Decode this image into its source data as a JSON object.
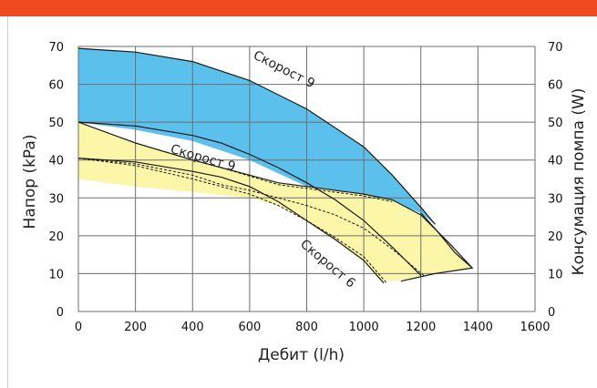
{
  "theme": {
    "accent": "#f04a23",
    "blue_region": "#5bc0ec",
    "yellow_region": "#fbf6a8"
  },
  "chart_data": {
    "type": "area",
    "xlabel": "Дебит (l/h)",
    "ylabel": "Напор (kPa)",
    "ylabel_right": "Консумация помпа (W)",
    "xlim": [
      0,
      1600
    ],
    "ylim": [
      0,
      70
    ],
    "ylim_right": [
      0,
      70
    ],
    "x_ticks": [
      0,
      200,
      400,
      600,
      800,
      1000,
      1200,
      1400,
      1600
    ],
    "y_ticks": [
      0,
      10,
      20,
      30,
      40,
      50,
      60,
      70
    ],
    "y_ticks_right": [
      0,
      10,
      20,
      30,
      40,
      50,
      60,
      70
    ],
    "grid": true,
    "areas": [
      {
        "color": "#5bc0ec",
        "upper": [
          [
            0,
            69.5
          ],
          [
            200,
            68.5
          ],
          [
            400,
            66
          ],
          [
            600,
            61
          ],
          [
            800,
            53.5
          ],
          [
            1000,
            43.5
          ],
          [
            1100,
            36
          ],
          [
            1200,
            27.5
          ],
          [
            1250,
            23
          ]
        ],
        "lower": [
          [
            0,
            50
          ],
          [
            200,
            48
          ],
          [
            400,
            45
          ],
          [
            600,
            40
          ],
          [
            800,
            33
          ],
          [
            1000,
            30.5
          ],
          [
            1100,
            29
          ],
          [
            1200,
            26
          ],
          [
            1250,
            23
          ]
        ]
      },
      {
        "color": "#fbf6a8",
        "upper": [
          [
            0,
            50
          ],
          [
            200,
            44.5
          ],
          [
            400,
            40
          ],
          [
            500,
            38
          ],
          [
            600,
            36
          ],
          [
            700,
            34
          ],
          [
            800,
            33
          ],
          [
            1000,
            31
          ],
          [
            1100,
            29.5
          ],
          [
            1200,
            25.5
          ],
          [
            1300,
            18
          ],
          [
            1380,
            11.5
          ]
        ],
        "lower": [
          [
            0,
            35
          ],
          [
            200,
            33
          ],
          [
            400,
            31.5
          ],
          [
            600,
            30
          ],
          [
            700,
            28
          ],
          [
            800,
            24
          ],
          [
            900,
            19
          ],
          [
            1000,
            13
          ],
          [
            1060,
            8.5
          ],
          [
            1100,
            8
          ]
        ]
      }
    ],
    "curves": [
      {
        "style": "solid",
        "points": [
          [
            0,
            50
          ],
          [
            200,
            49
          ],
          [
            400,
            46.5
          ],
          [
            500,
            44.5
          ],
          [
            600,
            41.5
          ],
          [
            700,
            38
          ],
          [
            800,
            34
          ],
          [
            900,
            29.5
          ],
          [
            1000,
            24
          ],
          [
            1100,
            17
          ],
          [
            1200,
            9.5
          ]
        ]
      },
      {
        "style": "solid",
        "points": [
          [
            0,
            40.5
          ],
          [
            200,
            39.5
          ],
          [
            400,
            37
          ],
          [
            500,
            35.5
          ],
          [
            600,
            33
          ],
          [
            700,
            29
          ],
          [
            800,
            24
          ],
          [
            900,
            19
          ],
          [
            1000,
            13.5
          ],
          [
            1070,
            7.5
          ]
        ]
      },
      {
        "style": "solid",
        "points": [
          [
            1200,
            26
          ],
          [
            1260,
            21
          ],
          [
            1320,
            15.5
          ],
          [
            1380,
            11.5
          ],
          [
            1250,
            10
          ],
          [
            1130,
            8
          ]
        ]
      },
      {
        "style": "dashed",
        "points": [
          [
            0,
            40.5
          ],
          [
            200,
            38.5
          ],
          [
            400,
            35
          ],
          [
            500,
            33
          ],
          [
            600,
            31
          ],
          [
            700,
            28
          ],
          [
            800,
            24
          ],
          [
            900,
            19.5
          ],
          [
            1000,
            14.5
          ],
          [
            1080,
            7.5
          ]
        ]
      },
      {
        "style": "dashed",
        "points": [
          [
            0,
            40.5
          ],
          [
            200,
            39
          ],
          [
            400,
            36
          ],
          [
            500,
            33.5
          ],
          [
            600,
            32
          ],
          [
            700,
            30
          ],
          [
            800,
            28
          ],
          [
            900,
            25.5
          ],
          [
            1000,
            22
          ],
          [
            1100,
            16.5
          ],
          [
            1210,
            9.5
          ]
        ]
      },
      {
        "style": "dashed",
        "points": [
          [
            500,
            38
          ],
          [
            700,
            33.5
          ],
          [
            800,
            32.5
          ],
          [
            1000,
            30.5
          ],
          [
            1100,
            29
          ]
        ]
      }
    ],
    "annotations": [
      {
        "text": "Скорост 9",
        "x": 610,
        "y": 67,
        "angle": 27
      },
      {
        "text": "Скорост 9",
        "x": 320,
        "y": 42,
        "angle": 16
      },
      {
        "text": "Скорост 6",
        "x": 775,
        "y": 17.5,
        "angle": 40
      }
    ]
  }
}
